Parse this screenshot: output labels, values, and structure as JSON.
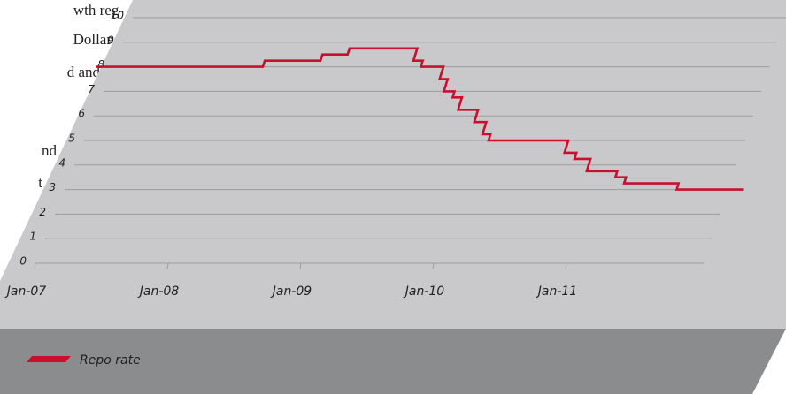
{
  "document_text": [
    "wth reg-",
    "Dollar",
    "d and",
    "nd",
    "t"
  ],
  "chart_data": {
    "type": "line",
    "xlim": [
      2007,
      2012.3
    ],
    "xticks": [
      {
        "value": 2007,
        "label": "Jan-07"
      },
      {
        "value": 2008,
        "label": "Jan-08"
      },
      {
        "value": 2009,
        "label": "Jan-09"
      },
      {
        "value": 2010,
        "label": "Jan-10"
      },
      {
        "value": 2011,
        "label": "Jan-11"
      }
    ],
    "ylim": [
      0,
      10
    ],
    "yticks": [
      0,
      1,
      2,
      3,
      4,
      5,
      6,
      7,
      8,
      9,
      10
    ],
    "grid": true,
    "legend": "bottom-left",
    "series": [
      {
        "name": "Repo rate",
        "color": "#c8102e",
        "x": [
          2007.0,
          2008.26,
          2008.26,
          2008.68,
          2008.68,
          2008.87,
          2008.87,
          2009.38,
          2009.38,
          2009.45,
          2009.45,
          2009.62,
          2009.62,
          2009.68,
          2009.68,
          2009.76,
          2009.76,
          2009.83,
          2009.83,
          2009.98,
          2009.98,
          2010.07,
          2010.07,
          2010.13,
          2010.13,
          2010.73,
          2010.73,
          2010.82,
          2010.82,
          2010.94,
          2010.94,
          2011.17,
          2011.17,
          2011.25,
          2011.25,
          2011.66,
          2011.66,
          2012.16
        ],
        "values": [
          8,
          8,
          8.25,
          8.25,
          8.5,
          8.5,
          8.75,
          8.75,
          8.25,
          8.25,
          8,
          8,
          7.5,
          7.5,
          7,
          7,
          6.75,
          6.75,
          6.25,
          6.25,
          5.75,
          5.75,
          5.25,
          5.25,
          5,
          5,
          4.5,
          4.5,
          4.25,
          4.25,
          3.75,
          3.75,
          3.5,
          3.5,
          3.25,
          3.25,
          3,
          3
        ]
      }
    ]
  }
}
